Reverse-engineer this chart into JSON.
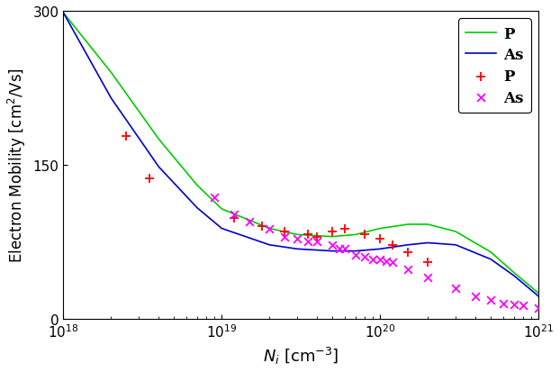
{
  "title": "",
  "xlabel": "$N_i$ [cm$^{-3}$]",
  "ylabel": "Electron Mobility [cm$^2$/Vs]",
  "xlim": [
    1e+18,
    1e+21
  ],
  "ylim": [
    0,
    300
  ],
  "yticks": [
    0,
    150,
    300
  ],
  "bg_color": "#ffffff",
  "line_P_color": "#00cc00",
  "line_As_color": "#0000cc",
  "marker_P_color": "red",
  "marker_As_color": "magenta",
  "legend_entries": [
    "P",
    "As",
    "P",
    "As"
  ],
  "P_line_x": [
    1e+18,
    2e+18,
    4e+18,
    7e+18,
    1e+19,
    2e+19,
    3e+19,
    5e+19,
    7e+19,
    1e+20,
    1.5e+20,
    2e+20,
    3e+20,
    5e+20,
    7e+20,
    1e+21
  ],
  "P_line_y": [
    298,
    240,
    175,
    130,
    107,
    88,
    82,
    80,
    82,
    88,
    92,
    92,
    85,
    65,
    45,
    25
  ],
  "As_line_x": [
    1e+18,
    2e+18,
    4e+18,
    7e+18,
    1e+19,
    2e+19,
    3e+19,
    5e+19,
    7e+19,
    1e+20,
    1.5e+20,
    2e+20,
    3e+20,
    5e+20,
    7e+20,
    1e+21
  ],
  "As_line_y": [
    298,
    215,
    148,
    108,
    88,
    72,
    68,
    66,
    66,
    68,
    72,
    74,
    72,
    58,
    42,
    22
  ],
  "P_scatter_x": [
    2.5e+18,
    3.5e+18,
    1.2e+19,
    1.8e+19,
    2.5e+19,
    3.5e+19,
    4e+19,
    5e+19,
    6e+19,
    8e+19,
    1e+20,
    1.2e+20,
    1.5e+20,
    2e+20
  ],
  "P_scatter_y": [
    178,
    137,
    98,
    90,
    85,
    82,
    80,
    85,
    88,
    82,
    78,
    72,
    65,
    55
  ],
  "As_scatter_x": [
    9e+18,
    1.2e+19,
    1.5e+19,
    2e+19,
    2.5e+19,
    3e+19,
    3.5e+19,
    4e+19,
    5e+19,
    5.5e+19,
    6e+19,
    7e+19,
    8e+19,
    9e+19,
    1e+20,
    1.1e+20,
    1.2e+20,
    1.5e+20,
    2e+20,
    3e+20,
    4e+20,
    5e+20,
    6e+20,
    7e+20,
    8e+20,
    1e+21
  ],
  "As_scatter_y": [
    118,
    102,
    95,
    88,
    80,
    78,
    75,
    75,
    72,
    68,
    68,
    62,
    60,
    58,
    58,
    56,
    55,
    48,
    40,
    30,
    22,
    18,
    15,
    14,
    13,
    10
  ]
}
